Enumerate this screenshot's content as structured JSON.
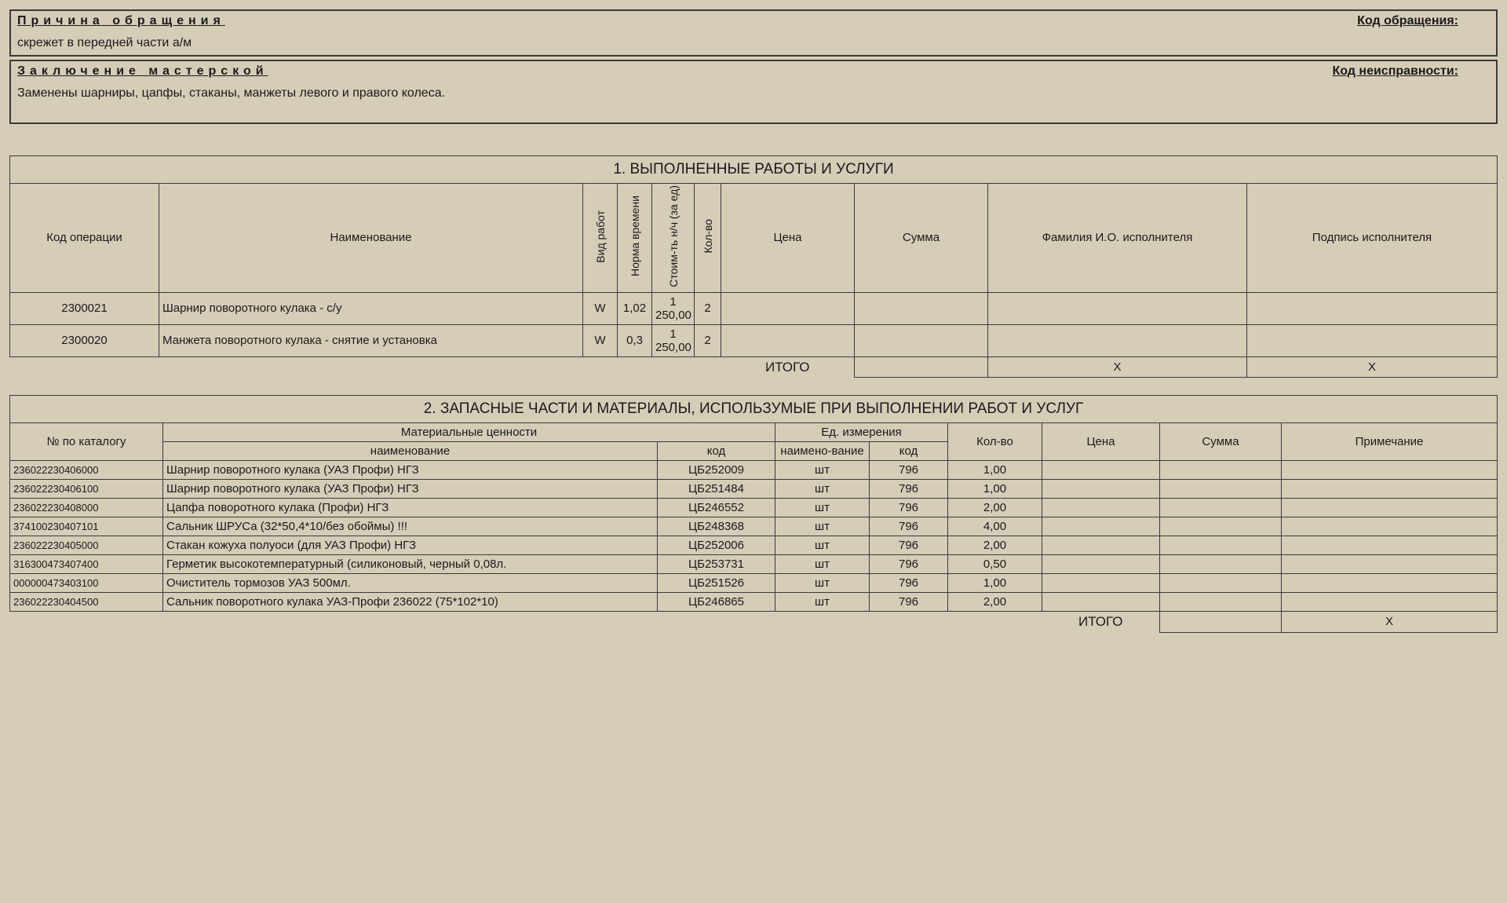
{
  "colors": {
    "bg": "#d6cdb8",
    "border": "#3a3a3a",
    "text": "#1a1a1a"
  },
  "reason": {
    "title": "Причина обращения",
    "code_label": "Код обращения:",
    "text": "скрежет в передней части а/м"
  },
  "conclusion": {
    "title": "Заключение мастерской",
    "code_label": "Код неисправности:",
    "text": "Заменены шарниры, цапфы, стаканы, манжеты левого и правого колеса."
  },
  "works": {
    "title": "1. ВЫПОЛНЕННЫЕ РАБОТЫ И УСЛУГИ",
    "columns": {
      "code": "Код операции",
      "name": "Наименование",
      "type": "Вид работ",
      "norm": "Норма времени",
      "cost": "Стоим-ть н/ч (за ед)",
      "qty": "Кол-во",
      "price": "Цена",
      "sum": "Сумма",
      "performer": "Фамилия И.О. исполнителя",
      "sign": "Подпись исполнителя"
    },
    "rows": [
      {
        "code": "2300021",
        "name": "Шарнир поворотного кулака - с/у",
        "type": "W",
        "norm": "1,02",
        "cost": "1 250,00",
        "qty": "2",
        "price": "",
        "sum": "",
        "performer": "",
        "sign": ""
      },
      {
        "code": "2300020",
        "name": "Манжета поворотного кулака - снятие и установка",
        "type": "W",
        "norm": "0,3",
        "cost": "1 250,00",
        "qty": "2",
        "price": "",
        "sum": "",
        "performer": "",
        "sign": ""
      }
    ],
    "total_label": "ИТОГО",
    "total_x": "X"
  },
  "parts": {
    "title": "2. ЗАПАСНЫЕ ЧАСТИ И МАТЕРИАЛЫ, ИСПОЛЬЗУМЫЕ ПРИ ВЫПОЛНЕНИИ РАБОТ И УСЛУГ",
    "columns": {
      "catalog": "№ по каталогу",
      "matgroup": "Материальные ценности",
      "name": "наименование",
      "code": "код",
      "unitgroup": "Ед. измерения",
      "unit_name": "наимено-вание",
      "unit_code": "код",
      "qty": "Кол-во",
      "price": "Цена",
      "sum": "Сумма",
      "note": "Примечание"
    },
    "rows": [
      {
        "catalog": "236022230406000",
        "name": "Шарнир поворотного кулака (УАЗ Профи) НГЗ",
        "code": "ЦБ252009",
        "unit_name": "шт",
        "unit_code": "796",
        "qty": "1,00",
        "price": "",
        "sum": "",
        "note": ""
      },
      {
        "catalog": "236022230406100",
        "name": "Шарнир поворотного кулака (УАЗ Профи) НГЗ",
        "code": "ЦБ251484",
        "unit_name": "шт",
        "unit_code": "796",
        "qty": "1,00",
        "price": "",
        "sum": "",
        "note": ""
      },
      {
        "catalog": "236022230408000",
        "name": "Цапфа поворотного кулака (Профи) НГЗ",
        "code": "ЦБ246552",
        "unit_name": "шт",
        "unit_code": "796",
        "qty": "2,00",
        "price": "",
        "sum": "",
        "note": ""
      },
      {
        "catalog": "374100230407101",
        "name": "Сальник ШРУСа  (32*50,4*10/без обоймы) !!!",
        "code": "ЦБ248368",
        "unit_name": "шт",
        "unit_code": "796",
        "qty": "4,00",
        "price": "",
        "sum": "",
        "note": ""
      },
      {
        "catalog": "236022230405000",
        "name": "Стакан кожуха полуоси (для УАЗ Профи) НГЗ",
        "code": "ЦБ252006",
        "unit_name": "шт",
        "unit_code": "796",
        "qty": "2,00",
        "price": "",
        "sum": "",
        "note": ""
      },
      {
        "catalog": "316300473407400",
        "name": "Герметик высокотемпературный (силиконовый, черный 0,08л.",
        "code": "ЦБ253731",
        "unit_name": "шт",
        "unit_code": "796",
        "qty": "0,50",
        "price": "",
        "sum": "",
        "note": ""
      },
      {
        "catalog": "000000473403100",
        "name": "Очиститель тормозов УАЗ 500мл.",
        "code": "ЦБ251526",
        "unit_name": "шт",
        "unit_code": "796",
        "qty": "1,00",
        "price": "",
        "sum": "",
        "note": ""
      },
      {
        "catalog": "236022230404500",
        "name": "Сальник поворотного кулака УАЗ-Профи 236022 (75*102*10)",
        "code": "ЦБ246865",
        "unit_name": "шт",
        "unit_code": "796",
        "qty": "2,00",
        "price": "",
        "sum": "",
        "note": ""
      }
    ],
    "total_label": "ИТОГО",
    "total_x": "X"
  }
}
